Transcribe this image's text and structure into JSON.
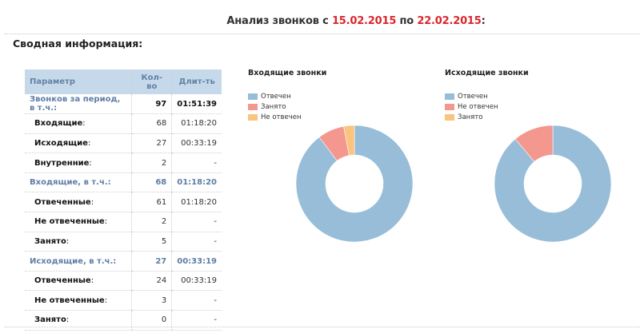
{
  "header": {
    "title_prefix": "Анализ звонков с ",
    "date_from": "15.02.2015",
    "title_middle": " по ",
    "date_to": "22.02.2015",
    "title_suffix": ":"
  },
  "summary": {
    "title": "Сводная информация:",
    "columns": [
      "Параметр",
      "Кол-во",
      "Длит-ть"
    ],
    "rows": [
      {
        "type": "group",
        "label": "Звонков за период, в т.ч.:",
        "count": "97",
        "duration": "01:51:39"
      },
      {
        "type": "sub",
        "label": "Входящие",
        "count": "68",
        "duration": "01:18:20"
      },
      {
        "type": "sub",
        "label": "Исходящие",
        "count": "27",
        "duration": "00:33:19"
      },
      {
        "type": "sub",
        "label": "Внутренние",
        "count": "2",
        "duration": "-"
      },
      {
        "type": "group",
        "label": "Входящие, в т.ч.:",
        "count": "68",
        "duration": "01:18:20"
      },
      {
        "type": "sub",
        "label": "Отвеченные",
        "count": "61",
        "duration": "01:18:20"
      },
      {
        "type": "sub",
        "label": "Не отвеченные",
        "count": "2",
        "duration": "-"
      },
      {
        "type": "sub",
        "label": "Занято",
        "count": "5",
        "duration": "-"
      },
      {
        "type": "group",
        "label": "Исходящие, в т.ч.:",
        "count": "27",
        "duration": "00:33:19"
      },
      {
        "type": "sub",
        "label": "Отвеченные",
        "count": "24",
        "duration": "00:33:19"
      },
      {
        "type": "sub",
        "label": "Не отвеченные",
        "count": "3",
        "duration": "-"
      },
      {
        "type": "sub",
        "label": "Занято",
        "count": "0",
        "duration": "-"
      }
    ]
  },
  "colors": {
    "answered": "#97bdd9",
    "busy": "#f4978e",
    "unanswered": "#fac47f",
    "date_red": "#d9262c",
    "header_bg": "#c5d9ea",
    "header_text": "#6482a6"
  },
  "chart_data": [
    {
      "type": "pie",
      "donut": true,
      "title": "Входящие звонки",
      "legend": [
        "Отвечен",
        "Занято",
        "Не отвечен"
      ],
      "categories": [
        "Отвечен",
        "Занято",
        "Не отвечен"
      ],
      "values": [
        61,
        5,
        2
      ],
      "colors": [
        "#97bdd9",
        "#f4978e",
        "#fac47f"
      ],
      "legend_position": "top-left"
    },
    {
      "type": "pie",
      "donut": true,
      "title": "Исходящие звонки",
      "legend": [
        "Отвечен",
        "Не отвечен",
        "Занято"
      ],
      "categories": [
        "Отвечен",
        "Не отвечен",
        "Занято"
      ],
      "values": [
        24,
        3,
        0
      ],
      "colors": [
        "#97bdd9",
        "#f4978e",
        "#fac47f"
      ],
      "legend_position": "top-left"
    }
  ]
}
